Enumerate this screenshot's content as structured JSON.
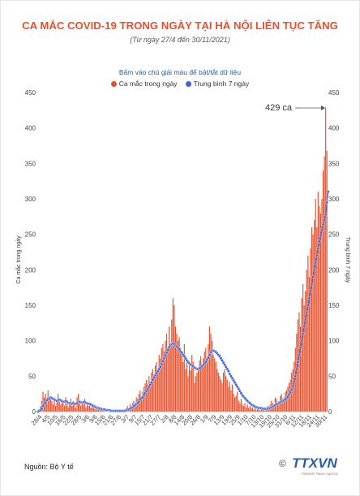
{
  "header": {
    "title": "CA MẮC COVID-19 TRONG NGÀY TẠI HÀ NỘI LIÊN TỤC TĂNG",
    "subtitle": "(Từ ngày 27/4 đến 30/11/2021)"
  },
  "hint": "Bấm vào chú giải màu để bật/tắt dữ liệu",
  "legend": {
    "daily": "Ca mắc trong ngày",
    "avg": "Trung bình 7 ngày"
  },
  "colors": {
    "title": "#e8502b",
    "bar": "#e8502b",
    "line": "#3a64d8",
    "hint": "#1f5fa0"
  },
  "footer": {
    "source": "Nguồn: Bộ Y tế",
    "logo_text": "TTXVN",
    "logo_sub": "Vietnam News Agency"
  },
  "chart_data": {
    "type": "bar",
    "title": "CA MẮC COVID-19 TRONG NGÀY TẠI HÀ NỘI LIÊN TỤC TĂNG",
    "ylabel_left": "Ca mắc trong ngày",
    "ylabel_right": "Trung bình 7 ngày",
    "ylim": [
      0,
      450
    ],
    "yticks": [
      0,
      50,
      100,
      150,
      200,
      250,
      300,
      350,
      400,
      450
    ],
    "grid": false,
    "legend_position": "top-center",
    "annotation": "429 ca",
    "x_tick_labels": [
      "28/4",
      "4/5",
      "10/5",
      "16/5",
      "22/5",
      "28/5",
      "3/6",
      "9/6",
      "15/6",
      "21/6",
      "27/6",
      "3/7",
      "9/7",
      "15/7",
      "21/7",
      "27/7",
      "2/8",
      "8/8",
      "14/8",
      "20/8",
      "26/8",
      "1/9",
      "7/9",
      "13/9",
      "19/9",
      "25/9",
      "1/10",
      "7/10",
      "13/10",
      "19/10",
      "25/10",
      "31/10",
      "6/11",
      "12/11",
      "18/11",
      "24/11",
      "30/11"
    ],
    "series": [
      {
        "name": "Ca mắc trong ngày",
        "type": "bar",
        "axis": "left",
        "segments": [
          {
            "start": "27/4",
            "values": [
              0,
              3,
              8,
              15,
              28,
              20,
              25,
              12,
              30,
              18,
              22,
              15,
              10,
              20,
              8,
              14,
              25,
              18,
              10,
              15,
              12,
              8,
              20,
              10,
              6,
              12,
              18,
              8,
              15,
              10,
              5,
              20,
              25,
              12,
              8,
              15,
              10,
              18,
              6,
              12,
              8,
              10,
              5,
              8,
              6,
              4,
              3,
              5,
              4,
              2,
              3,
              2,
              4,
              2,
              1,
              3,
              2,
              1,
              0,
              2,
              1,
              2,
              1,
              0,
              1,
              2,
              1,
              1,
              2,
              3,
              5,
              8,
              4,
              10,
              6,
              12,
              15,
              8,
              20,
              18,
              25,
              30,
              22,
              28,
              35,
              40,
              45,
              38,
              50,
              42,
              55,
              60,
              48,
              65,
              70,
              55,
              80,
              75,
              90,
              95,
              85,
              100,
              110,
              90,
              120,
              95,
              130,
              160,
              150,
              120,
              110,
              100,
              105,
              90,
              85,
              70,
              95,
              60,
              75,
              50,
              65,
              58,
              80,
              70,
              40,
              50,
              55,
              60,
              72,
              78,
              65,
              75,
              85,
              90,
              70,
              95,
              120,
              110,
              100,
              80,
              75,
              70,
              60,
              55,
              50,
              45,
              40,
              55,
              60,
              50,
              45,
              35,
              42,
              30,
              38,
              25,
              20,
              22,
              28,
              15,
              12,
              18,
              10,
              8,
              12,
              6,
              10,
              5,
              8,
              4,
              6,
              3,
              5,
              2,
              4,
              3,
              2,
              5,
              4,
              3,
              2,
              5,
              8,
              6,
              10,
              15,
              12,
              8,
              20,
              18,
              12,
              15,
              22,
              25,
              18,
              20,
              28,
              30,
              35,
              40,
              45,
              55,
              60,
              70,
              90,
              110,
              130,
              140,
              120,
              160,
              180,
              150,
              170,
              200,
              220,
              190,
              230,
              260,
              250,
              270,
              300,
              260,
              310,
              290,
              280,
              300,
              340,
              360,
              429,
              368
            ]
          }
        ]
      },
      {
        "name": "Trung bình 7 ngày",
        "type": "line",
        "axis": "right",
        "values": [
          0,
          1,
          2,
          4,
          8,
          11,
          13,
          16,
          18,
          18,
          20,
          19,
          18,
          17,
          16,
          15,
          16,
          17,
          16,
          15,
          14,
          14,
          15,
          14,
          12,
          12,
          12,
          11,
          12,
          11,
          11,
          12,
          14,
          14,
          13,
          13,
          13,
          14,
          12,
          12,
          11,
          11,
          10,
          9,
          8,
          7,
          6,
          5,
          5,
          4,
          4,
          3,
          3,
          3,
          2,
          2,
          2,
          2,
          1,
          1,
          1,
          1,
          1,
          1,
          1,
          1,
          1,
          1,
          1,
          1,
          2,
          3,
          3,
          4,
          5,
          6,
          8,
          9,
          11,
          12,
          14,
          17,
          19,
          20,
          23,
          26,
          29,
          32,
          35,
          38,
          41,
          45,
          48,
          51,
          54,
          57,
          60,
          63,
          67,
          71,
          75,
          79,
          83,
          87,
          91,
          94,
          95,
          96,
          95,
          93,
          92,
          90,
          88,
          85,
          83,
          80,
          78,
          75,
          72,
          70,
          68,
          66,
          65,
          64,
          62,
          61,
          60,
          60,
          61,
          62,
          64,
          66,
          68,
          70,
          73,
          76,
          80,
          84,
          86,
          86,
          85,
          84,
          82,
          80,
          78,
          75,
          72,
          69,
          66,
          63,
          60,
          57,
          53,
          50,
          47,
          44,
          41,
          38,
          35,
          32,
          29,
          26,
          23,
          21,
          19,
          17,
          15,
          13,
          12,
          10,
          9,
          8,
          7,
          6,
          6,
          5,
          5,
          5,
          4,
          4,
          4,
          4,
          4,
          5,
          5,
          6,
          7,
          8,
          9,
          10,
          11,
          12,
          13,
          14,
          15,
          16,
          17,
          19,
          21,
          24,
          27,
          31,
          36,
          42,
          50,
          60,
          70,
          80,
          90,
          100,
          110,
          120,
          130,
          140,
          150,
          160,
          170,
          180,
          190,
          200,
          210,
          220,
          230,
          240,
          248,
          256,
          264,
          270,
          278,
          295,
          310
        ]
      }
    ]
  }
}
